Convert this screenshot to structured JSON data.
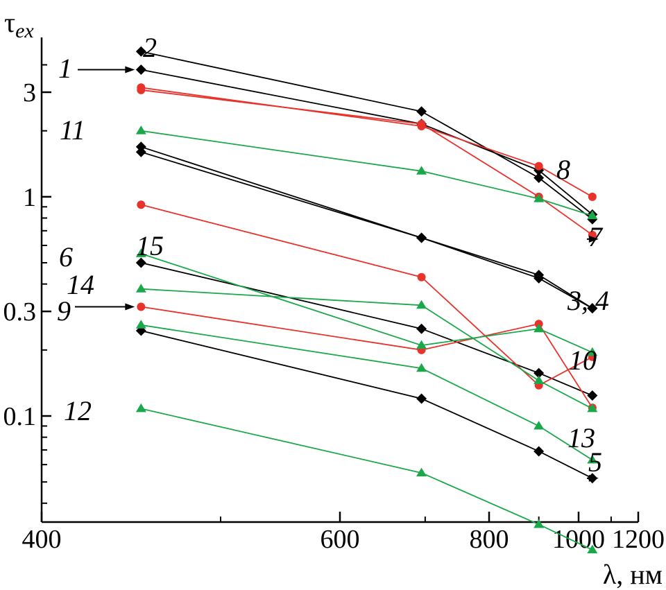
{
  "chart_data": {
    "type": "line",
    "title": "",
    "xlabel": "λ, нм",
    "ylabel": "τ",
    "ylabel_sub": "ex",
    "x_scale": "reciprocal",
    "y_scale": "log",
    "xlim": [
      400,
      1200
    ],
    "ylim": [
      0.035,
      5
    ],
    "x_ticks": [
      400,
      600,
      800,
      1000,
      1200
    ],
    "x_tick_labels": [
      "400",
      "600",
      "800",
      "1000",
      "1200"
    ],
    "y_ticks": [
      0.1,
      0.3,
      1,
      3
    ],
    "y_tick_labels": [
      "0.1",
      "0.3",
      "1",
      "3"
    ],
    "grid": false,
    "x": [
      450,
      695,
      900,
      1040
    ],
    "colors": {
      "black": "#000000",
      "red": "#e8322c",
      "green": "#1aa84a"
    },
    "series": [
      {
        "id": "1",
        "label": "1",
        "color": "black",
        "marker": "diamond",
        "values": [
          3.8,
          2.15,
          1.32,
          0.83
        ]
      },
      {
        "id": "2",
        "label": "2",
        "color": "black",
        "marker": "diamond",
        "values": [
          4.6,
          2.45,
          1.22,
          0.79
        ]
      },
      {
        "id": "3",
        "label": "3, 4",
        "color": "black",
        "marker": "diamond",
        "values": [
          1.69,
          0.65,
          0.425,
          0.31
        ]
      },
      {
        "id": "4",
        "label": "",
        "color": "black",
        "marker": "diamond",
        "values": [
          1.6,
          0.65,
          0.44,
          0.31
        ]
      },
      {
        "id": "5",
        "label": "5",
        "color": "black",
        "marker": "diamond",
        "values": [
          0.245,
          0.12,
          0.069,
          0.052
        ]
      },
      {
        "id": "6",
        "label": "6",
        "color": "black",
        "marker": "diamond",
        "values": [
          0.5,
          0.25,
          0.157,
          0.124
        ]
      },
      {
        "id": "7",
        "label": "7",
        "color": "red",
        "marker": "circle",
        "values": [
          3.07,
          2.15,
          1.0,
          0.67
        ]
      },
      {
        "id": "8",
        "label": "8",
        "color": "red",
        "marker": "circle",
        "values": [
          3.15,
          2.1,
          1.38,
          1.0
        ]
      },
      {
        "id": "9",
        "label": "9",
        "color": "red",
        "marker": "circle",
        "values": [
          0.315,
          0.2,
          0.263,
          0.109
        ]
      },
      {
        "id": "10",
        "label": "10",
        "color": "red",
        "marker": "circle",
        "values": [
          0.92,
          0.43,
          0.138,
          0.186
        ]
      },
      {
        "id": "11",
        "label": "11",
        "color": "green",
        "marker": "triangle",
        "values": [
          2.0,
          1.31,
          0.98,
          0.82
        ]
      },
      {
        "id": "12",
        "label": "12",
        "color": "green",
        "marker": "triangle",
        "values": [
          0.108,
          0.055,
          0.032,
          0.0245
        ]
      },
      {
        "id": "13",
        "label": "13",
        "color": "green",
        "marker": "triangle",
        "values": [
          0.26,
          0.165,
          0.09,
          0.063
        ]
      },
      {
        "id": "14",
        "label": "14",
        "color": "green",
        "marker": "triangle",
        "values": [
          0.38,
          0.32,
          0.145,
          0.108
        ]
      },
      {
        "id": "15",
        "label": "15",
        "color": "green",
        "marker": "triangle",
        "values": [
          0.55,
          0.21,
          0.25,
          0.195
        ]
      }
    ]
  }
}
